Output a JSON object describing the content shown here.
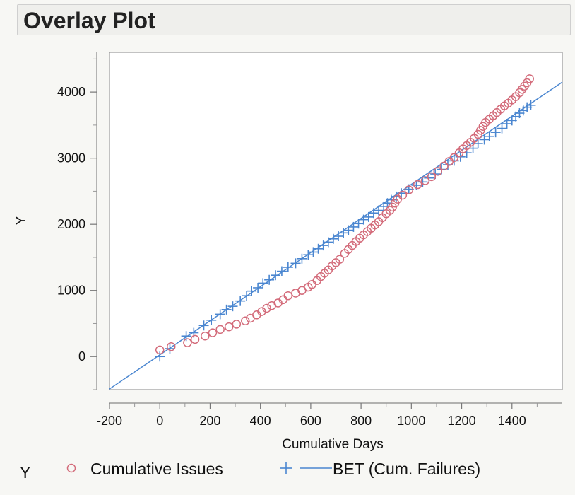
{
  "title": "Overlay Plot",
  "colors": {
    "issues": "#d36b7a",
    "bet": "#4a86d0",
    "frame": "#999999",
    "background": "#ffffff"
  },
  "chart_data": {
    "type": "scatter",
    "xlabel": "Cumulative Days",
    "ylabel": "Y",
    "xlim": [
      -200,
      1600
    ],
    "ylim": [
      -500,
      4600
    ],
    "xticks": [
      -200,
      0,
      200,
      400,
      600,
      800,
      1000,
      1200,
      1400
    ],
    "yticks": [
      0,
      1000,
      2000,
      3000,
      4000
    ],
    "grid": false,
    "legend_title": "Y",
    "legend_position": "bottom",
    "series": [
      {
        "name": "Cumulative Issues",
        "marker": "circle",
        "points": [
          [
            0,
            100
          ],
          [
            45,
            150
          ],
          [
            110,
            210
          ],
          [
            140,
            260
          ],
          [
            180,
            310
          ],
          [
            210,
            360
          ],
          [
            240,
            410
          ],
          [
            275,
            450
          ],
          [
            305,
            490
          ],
          [
            340,
            540
          ],
          [
            360,
            580
          ],
          [
            385,
            630
          ],
          [
            405,
            680
          ],
          [
            425,
            730
          ],
          [
            445,
            770
          ],
          [
            470,
            810
          ],
          [
            490,
            860
          ],
          [
            510,
            920
          ],
          [
            540,
            960
          ],
          [
            565,
            1000
          ],
          [
            590,
            1050
          ],
          [
            605,
            1090
          ],
          [
            625,
            1150
          ],
          [
            640,
            1210
          ],
          [
            655,
            1260
          ],
          [
            670,
            1310
          ],
          [
            685,
            1370
          ],
          [
            700,
            1420
          ],
          [
            715,
            1470
          ],
          [
            735,
            1560
          ],
          [
            750,
            1620
          ],
          [
            765,
            1680
          ],
          [
            780,
            1740
          ],
          [
            795,
            1790
          ],
          [
            810,
            1840
          ],
          [
            825,
            1890
          ],
          [
            840,
            1940
          ],
          [
            855,
            1990
          ],
          [
            870,
            2040
          ],
          [
            885,
            2100
          ],
          [
            900,
            2160
          ],
          [
            915,
            2210
          ],
          [
            925,
            2260
          ],
          [
            935,
            2320
          ],
          [
            945,
            2380
          ],
          [
            965,
            2440
          ],
          [
            990,
            2520
          ],
          [
            1025,
            2600
          ],
          [
            1055,
            2660
          ],
          [
            1080,
            2720
          ],
          [
            1105,
            2800
          ],
          [
            1130,
            2880
          ],
          [
            1150,
            2950
          ],
          [
            1170,
            3010
          ],
          [
            1190,
            3080
          ],
          [
            1205,
            3140
          ],
          [
            1220,
            3190
          ],
          [
            1235,
            3240
          ],
          [
            1250,
            3300
          ],
          [
            1265,
            3360
          ],
          [
            1275,
            3420
          ],
          [
            1285,
            3480
          ],
          [
            1295,
            3540
          ],
          [
            1310,
            3590
          ],
          [
            1325,
            3640
          ],
          [
            1340,
            3690
          ],
          [
            1355,
            3740
          ],
          [
            1370,
            3790
          ],
          [
            1385,
            3830
          ],
          [
            1400,
            3880
          ],
          [
            1415,
            3930
          ],
          [
            1430,
            3990
          ],
          [
            1440,
            4040
          ],
          [
            1450,
            4090
          ],
          [
            1460,
            4140
          ],
          [
            1470,
            4200
          ]
        ]
      },
      {
        "name": "BET (Cum. Failures)",
        "marker": "plus",
        "fit_line": {
          "from": [
            -200,
            -490
          ],
          "to": [
            1600,
            4150
          ]
        },
        "points": [
          [
            0,
            0
          ],
          [
            40,
            120
          ],
          [
            105,
            310
          ],
          [
            135,
            360
          ],
          [
            175,
            470
          ],
          [
            205,
            550
          ],
          [
            240,
            640
          ],
          [
            265,
            710
          ],
          [
            290,
            760
          ],
          [
            320,
            840
          ],
          [
            345,
            920
          ],
          [
            365,
            990
          ],
          [
            390,
            1040
          ],
          [
            410,
            1110
          ],
          [
            435,
            1160
          ],
          [
            460,
            1230
          ],
          [
            485,
            1290
          ],
          [
            510,
            1350
          ],
          [
            540,
            1410
          ],
          [
            565,
            1480
          ],
          [
            590,
            1540
          ],
          [
            610,
            1580
          ],
          [
            630,
            1630
          ],
          [
            650,
            1680
          ],
          [
            670,
            1730
          ],
          [
            690,
            1780
          ],
          [
            710,
            1820
          ],
          [
            730,
            1870
          ],
          [
            750,
            1910
          ],
          [
            770,
            1960
          ],
          [
            790,
            2010
          ],
          [
            810,
            2070
          ],
          [
            830,
            2110
          ],
          [
            850,
            2170
          ],
          [
            870,
            2210
          ],
          [
            890,
            2270
          ],
          [
            905,
            2320
          ],
          [
            920,
            2370
          ],
          [
            940,
            2420
          ],
          [
            960,
            2470
          ],
          [
            990,
            2530
          ],
          [
            1020,
            2590
          ],
          [
            1045,
            2640
          ],
          [
            1070,
            2700
          ],
          [
            1095,
            2760
          ],
          [
            1120,
            2830
          ],
          [
            1145,
            2900
          ],
          [
            1170,
            2960
          ],
          [
            1195,
            3020
          ],
          [
            1220,
            3080
          ],
          [
            1245,
            3150
          ],
          [
            1265,
            3220
          ],
          [
            1290,
            3280
          ],
          [
            1310,
            3330
          ],
          [
            1335,
            3390
          ],
          [
            1360,
            3450
          ],
          [
            1380,
            3520
          ],
          [
            1400,
            3570
          ],
          [
            1415,
            3630
          ],
          [
            1430,
            3680
          ],
          [
            1445,
            3720
          ],
          [
            1460,
            3770
          ],
          [
            1475,
            3800
          ]
        ]
      }
    ]
  }
}
